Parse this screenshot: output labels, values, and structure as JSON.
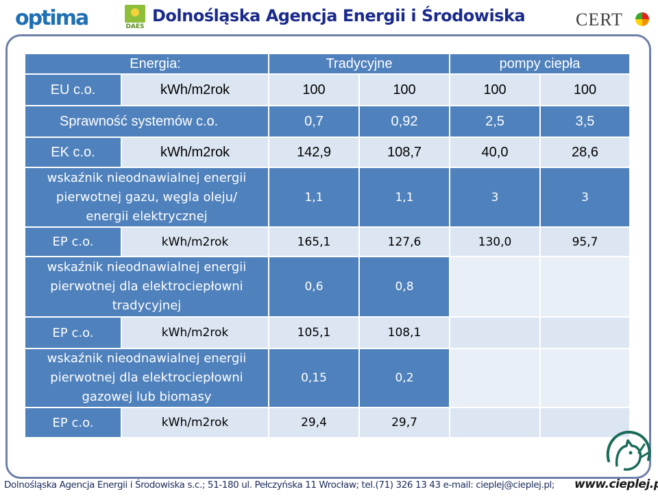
{
  "header": {
    "optima_logo": "optima",
    "daes_logo": "DAES",
    "agency_title": "Dolnośląska Agencja Energii i Środowiska",
    "certo_logo": "CERT",
    "colors": {
      "title": "#1a2a8c",
      "optima": "#1f6fb5",
      "daes_green": "#8fbf3a"
    }
  },
  "table": {
    "colors": {
      "header_blue": "#4f81bd",
      "row_light": "#dce6f2",
      "row_lighter": "#e9eff7"
    },
    "rows": [
      {
        "c0": "",
        "c1": "Energia:",
        "c2": "Tradycyjne",
        "c3": "pompy ciepła"
      },
      {
        "c0": "EU c.o.",
        "c1": "kWh/m2rok",
        "c2": "100",
        "c3": "100",
        "c4": "100",
        "c5": "100"
      },
      {
        "c0": "Sprawność systemów c.o.",
        "c2": "0,7",
        "c3": "0,92",
        "c4": "2,5",
        "c5": "3,5"
      },
      {
        "c0": "EK c.o.",
        "c1": "kWh/m2rok",
        "c2": "142,9",
        "c3": "108,7",
        "c4": "40,0",
        "c5": "28,6"
      },
      {
        "c0": "wskaźnik nieodnawialnej energii pierwotnej gazu, węgla oleju/ energii elektrycznej",
        "c2": "1,1",
        "c3": "1,1",
        "c4": "3",
        "c5": "3"
      },
      {
        "c0": "EP c.o.",
        "c1": "kWh/m2rok",
        "c2": "165,1",
        "c3": "127,6",
        "c4": "130,0",
        "c5": "95,7"
      },
      {
        "c0": "wskaźnik nieodnawialnej energii pierwotnej dla elektrociepłowni tradycyjnej",
        "c2": "0,6",
        "c3": "0,8",
        "c4": "",
        "c5": ""
      },
      {
        "c0": "EP c.o.",
        "c1": "kWh/m2rok",
        "c2": "105,1",
        "c3": "108,1",
        "c4": "",
        "c5": ""
      },
      {
        "c0": "wskaźnik nieodnawialnej energii pierwotnej dla elektrociepłowni gazowej lub biomasy",
        "c2": "0,15",
        "c3": "0,2",
        "c4": "",
        "c5": ""
      },
      {
        "c0": "EP c.o.",
        "c1": "kWh/m2rok",
        "c2": "29,4",
        "c3": "29,7",
        "c4": "",
        "c5": ""
      }
    ],
    "multiline_lines": {
      "r4": [
        "wskaźnik nieodnawialnej energii",
        "pierwotnej gazu, węgla oleju/",
        "energii elektrycznej"
      ],
      "r6": [
        "wskaźnik nieodnawialnej energii",
        "pierwotnej dla elektrociepłowni",
        "tradycyjnej"
      ],
      "r8": [
        "wskaźnik nieodnawialnej energii",
        "pierwotnej dla elektrociepłowni",
        "gazowej lub biomasy"
      ]
    }
  },
  "footer": {
    "address": "Dolnośląska Agencja Energii i Środowiska s.c.; 51-180 ul. Pełczyńska 11 Wrocław; tel.(71) 326 13 43 e-mail: cieplej@cieplej.pl;",
    "website": "www.cieplej.pl"
  }
}
